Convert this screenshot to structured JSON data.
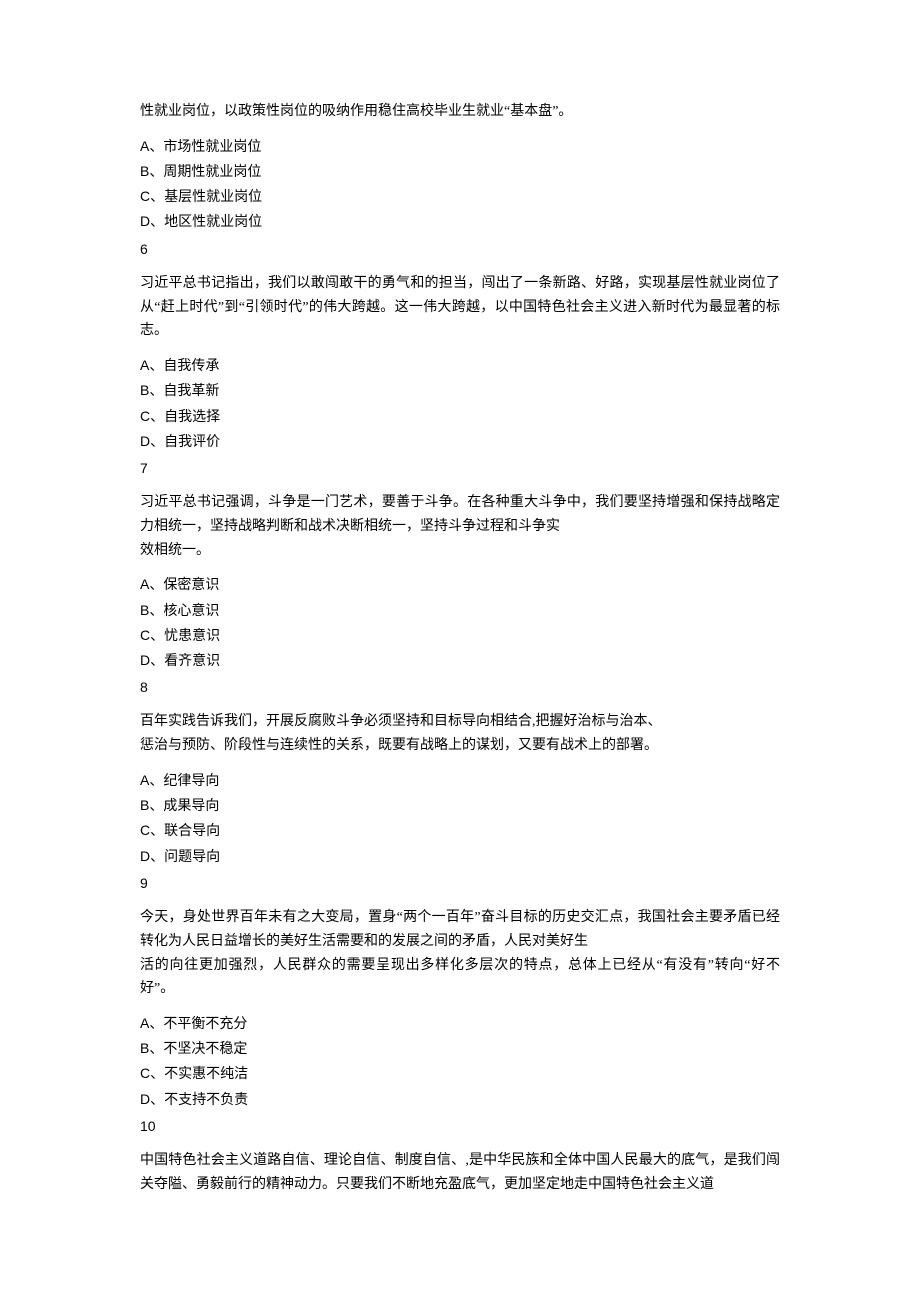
{
  "lead_in": "性就业岗位，以政策性岗位的吸纳作用稳住高校毕业生就业“基本盘”。",
  "questions": [
    {
      "num": "6",
      "options": [
        "A、市场性就业岗位",
        "B、周期性就业岗位",
        "C、基层性就业岗位",
        "D、地区性就业岗位"
      ],
      "stem_lines": [
        "习近平总书记指出，我们以敢闯敢干的勇气和的担当，闯出了一条新路、好路，实现基层性就业岗位了从“赶上时代”到“引领时代”的伟大跨越。这一伟大跨越，以中国特色社会主义进入新时代为最显著的标志。"
      ],
      "next_options": [
        "A、自我传承",
        "B、自我革新",
        "C、自我选择",
        "D、自我评价"
      ],
      "next_num": "7"
    },
    {
      "stem_lines": [
        "习近平总书记强调，斗争是一门艺术，要善于斗争。在各种重大斗争中，我们要坚持增强和保持战略定力相统一，坚持战略判断和战术决断相统一，坚持斗争过程和斗争实",
        "效相统一。"
      ],
      "options": [
        "A、保密意识",
        "B、核心意识",
        "C、忧患意识",
        "D、看齐意识"
      ],
      "num": "8"
    },
    {
      "stem_lines": [
        "百年实践告诉我们，开展反腐败斗争必须坚持和目标导向相结合,把握好治标与治本、",
        "惩治与预防、阶段性与连续性的关系，既要有战略上的谋划，又要有战术上的部署。"
      ],
      "options": [
        "A、纪律导向",
        "B、成果导向",
        "C、联合导向",
        "D、问题导向"
      ],
      "num": "9"
    },
    {
      "stem_lines": [
        "今天，身处世界百年未有之大变局，置身“两个一百年”奋斗目标的历史交汇点，我国社会主要矛盾已经转化为人民日益增长的美好生活需要和的发展之间的矛盾，人民对美好生",
        "活的向往更加强烈，人民群众的需要呈现出多样化多层次的特点，总体上已经从“有没有”转向“好不好”。"
      ],
      "options": [
        "A、不平衡不充分",
        "B、不坚决不稳定",
        "C、不实惠不纯洁",
        "D、不支持不负责"
      ],
      "num": "10"
    },
    {
      "stem_lines": [
        "中国特色社会主义道路自信、理论自信、制度自信、,是中华民族和全体中国人民最大的底气，是我们闯关夺隘、勇毅前行的精神动力。只要我们不断地充盈底气，更加坚定地走中国特色社会主义道"
      ]
    }
  ]
}
